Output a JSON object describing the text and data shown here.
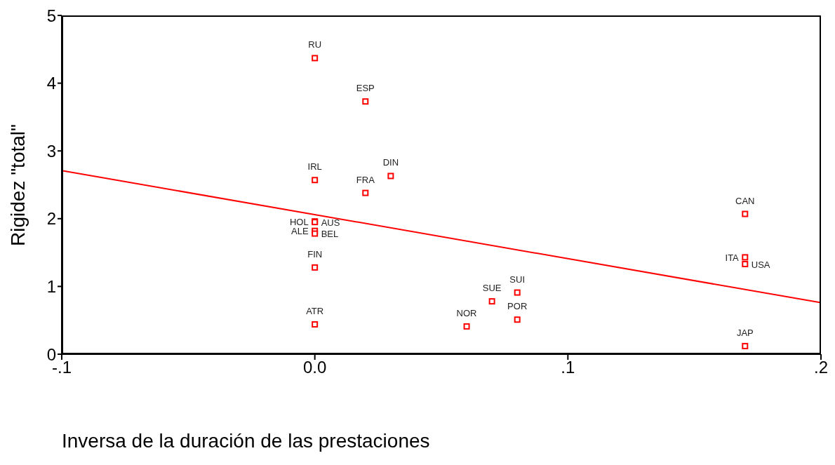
{
  "chart_data": {
    "type": "scatter",
    "xlabel": "Inversa de la duración de las prestaciones",
    "ylabel": "Rigidez \"total\"",
    "xlim": [
      -0.1,
      0.2
    ],
    "ylim": [
      0,
      5
    ],
    "xticks": [
      {
        "value": -0.1,
        "label": "-.1"
      },
      {
        "value": 0,
        "label": "0.0"
      },
      {
        "value": 0.1,
        "label": ".1"
      },
      {
        "value": 0.2,
        "label": ".2"
      }
    ],
    "yticks": [
      0,
      1,
      2,
      3,
      4,
      5
    ],
    "series": [
      {
        "color": "#ff0000",
        "marker": "square",
        "x": [
          0,
          0.02,
          0,
          0.03,
          0.02,
          0,
          0,
          0,
          0,
          0,
          0,
          0.06,
          0.07,
          0.08,
          0.08,
          0.17,
          0.17,
          0.17,
          0.17
        ],
        "values": [
          4.37,
          3.73,
          2.57,
          2.63,
          2.38,
          1.96,
          1.95,
          1.82,
          1.78,
          1.28,
          0.44,
          0.41,
          0.78,
          0.91,
          0.51,
          2.07,
          1.43,
          1.33,
          0.12
        ],
        "value_labels": [
          "RU",
          "ESP",
          "IRL",
          "DIN",
          "FRA",
          "HOL",
          "AUS",
          "ALE",
          "BEL",
          "FIN",
          "ATR",
          "NOR",
          "SUE",
          "SUI",
          "POR",
          "CAN",
          "ITA",
          "USA",
          "JAP"
        ]
      },
      {
        "type": "line",
        "color": "#ff0000",
        "x": [
          -0.1,
          0.2
        ],
        "values": [
          2.71,
          0.76
        ]
      }
    ]
  }
}
